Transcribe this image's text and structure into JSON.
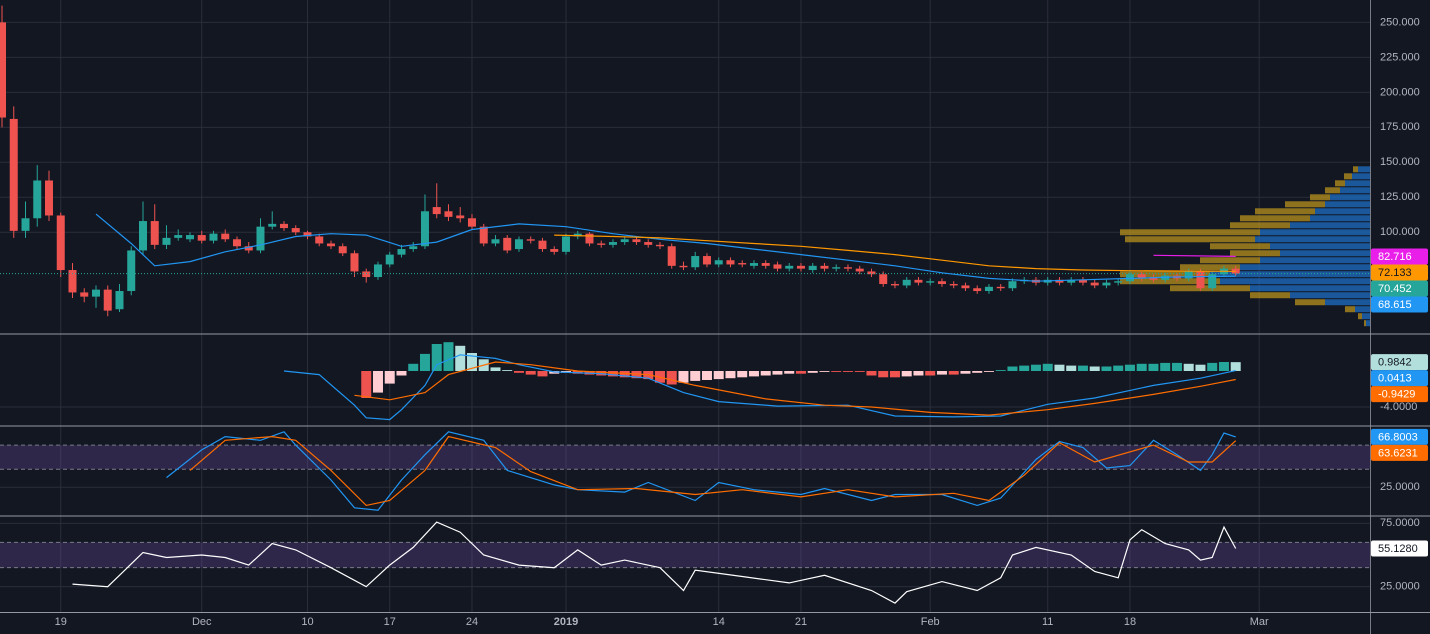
{
  "chart_data": [
    {
      "type": "candlestick",
      "open": [
        250,
        181,
        101,
        110,
        137,
        112,
        73,
        57,
        54,
        59,
        45,
        58,
        87,
        108,
        91,
        96,
        95,
        98,
        94,
        99,
        95,
        90,
        87,
        104,
        106,
        103,
        100,
        97,
        92,
        90,
        85,
        72,
        68,
        77,
        84,
        88,
        90,
        118,
        115,
        112,
        110,
        104,
        92,
        96,
        88,
        95,
        94,
        88,
        86,
        97,
        99,
        92,
        91,
        93,
        95,
        93,
        91,
        90,
        76,
        75,
        83,
        77,
        80,
        78,
        76,
        78,
        77,
        74,
        76,
        73,
        76,
        74,
        75,
        74,
        72,
        70,
        63,
        62,
        66,
        64,
        65,
        63,
        62,
        60,
        58,
        61,
        60,
        65,
        66,
        64,
        66,
        64,
        66,
        64,
        62,
        64,
        65,
        70,
        68,
        66,
        69,
        67,
        72,
        60,
        70,
        74
      ],
      "high": [
        262,
        190,
        122,
        148,
        144,
        114,
        78,
        60,
        62,
        62,
        63,
        90,
        122,
        120,
        105,
        102,
        100,
        101,
        101,
        102,
        97,
        93,
        110,
        115,
        108,
        105,
        101,
        99,
        94,
        92,
        87,
        74,
        79,
        86,
        91,
        93,
        127,
        135,
        120,
        118,
        113,
        106,
        98,
        98,
        97,
        97,
        96,
        90,
        99,
        101,
        100,
        94,
        95,
        97,
        97,
        95,
        93,
        92,
        79,
        86,
        85,
        82,
        82,
        80,
        80,
        80,
        79,
        78,
        78,
        78,
        78,
        77,
        77,
        76,
        74,
        72,
        65,
        68,
        68,
        67,
        67,
        65,
        64,
        62,
        63,
        63,
        67,
        68,
        68,
        68,
        68,
        68,
        68,
        66,
        66,
        67,
        72,
        72,
        70,
        71,
        71,
        74,
        74,
        72,
        76,
        76
      ],
      "low": [
        175,
        96,
        96,
        104,
        108,
        68,
        53,
        50,
        46,
        40,
        43,
        55,
        84,
        88,
        88,
        94,
        93,
        92,
        92,
        93,
        88,
        85,
        85,
        102,
        101,
        98,
        95,
        90,
        88,
        83,
        68,
        64,
        66,
        75,
        82,
        86,
        88,
        110,
        108,
        107,
        102,
        90,
        90,
        85,
        86,
        92,
        86,
        84,
        84,
        95,
        90,
        89,
        89,
        91,
        91,
        89,
        88,
        74,
        73,
        73,
        75,
        75,
        75,
        75,
        74,
        74,
        72,
        72,
        72,
        71,
        72,
        72,
        72,
        70,
        68,
        61,
        60,
        60,
        62,
        62,
        61,
        60,
        58,
        56,
        56,
        58,
        58,
        63,
        62,
        62,
        62,
        62,
        62,
        60,
        60,
        62,
        63,
        65,
        64,
        64,
        65,
        65,
        58,
        58,
        68,
        69
      ],
      "close": [
        182,
        101,
        110,
        137,
        112,
        73,
        57,
        54,
        59,
        44,
        58,
        87,
        108,
        91,
        96,
        98,
        98,
        94,
        99,
        95,
        90,
        87,
        104,
        106,
        103,
        100,
        97,
        92,
        90,
        85,
        72,
        68,
        77,
        84,
        88,
        90,
        115,
        113,
        111,
        110,
        104,
        92,
        95,
        87,
        95,
        94,
        88,
        86,
        97,
        99,
        92,
        91,
        93,
        95,
        93,
        91,
        90,
        76,
        75,
        83,
        77,
        80,
        77,
        77,
        78,
        76,
        74,
        76,
        74,
        76,
        74,
        75,
        74,
        72,
        70,
        63,
        62,
        66,
        64,
        65,
        63,
        62,
        60,
        58,
        61,
        60,
        65,
        66,
        64,
        66,
        64,
        66,
        64,
        62,
        64,
        65,
        70,
        67,
        66,
        69,
        67,
        72,
        60,
        70,
        74,
        70.452
      ],
      "up_color": "#26a69a",
      "down_color": "#ef5350",
      "price_line_color": "#26a69a",
      "series": [
        {
          "color": "#2196f3",
          "x": [
            8,
            11,
            13,
            16,
            19,
            22,
            25,
            28,
            31,
            34,
            37,
            40,
            44,
            48,
            52,
            56,
            60,
            64,
            68,
            72,
            76,
            80,
            84,
            88,
            92,
            96,
            100,
            105
          ],
          "values": [
            113,
            92,
            76,
            79,
            86,
            91,
            97,
            99,
            98,
            90,
            93,
            102,
            106,
            104,
            99,
            95,
            92,
            88,
            84,
            80,
            76,
            71,
            67,
            65,
            66,
            67,
            68,
            68.615
          ]
        },
        {
          "color": "#ff9800",
          "x": [
            47,
            52,
            56,
            60,
            64,
            68,
            72,
            76,
            80,
            84,
            88,
            92,
            96,
            100,
            105
          ],
          "values": [
            98,
            97,
            96,
            94,
            92,
            90,
            87,
            84,
            80,
            76,
            74,
            73,
            72.5,
            72.3,
            72.133
          ]
        },
        {
          "color": "#e91ee9",
          "x": [
            98,
            105
          ],
          "values": [
            83.5,
            82.716
          ]
        }
      ],
      "volume_profile": {
        "prices": [
          145,
          140,
          135,
          130,
          125,
          120,
          115,
          110,
          105,
          100,
          95,
          90,
          85,
          80,
          75,
          70,
          65,
          60,
          55,
          50,
          45,
          40,
          35
        ],
        "up": [
          12,
          18,
          25,
          30,
          40,
          45,
          55,
          60,
          80,
          110,
          115,
          100,
          90,
          110,
          130,
          160,
          150,
          120,
          80,
          45,
          15,
          8,
          4
        ],
        "down": [
          5,
          8,
          10,
          15,
          20,
          40,
          60,
          70,
          60,
          140,
          130,
          60,
          50,
          60,
          60,
          90,
          100,
          80,
          40,
          30,
          10,
          4,
          2
        ],
        "row_height": 5,
        "up_color": "#1e6fc4",
        "down_color": "#b8921c"
      },
      "ylim": [
        28,
        266
      ],
      "yticks": [
        {
          "value": 250,
          "label": "250.000"
        },
        {
          "value": 225,
          "label": "225.000"
        },
        {
          "value": 200,
          "label": "200.000"
        },
        {
          "value": 175,
          "label": "175.000"
        },
        {
          "value": 150,
          "label": "150.000"
        },
        {
          "value": 125,
          "label": "125.000"
        },
        {
          "value": 100,
          "label": "100.000"
        }
      ],
      "xlim": [
        -0.17,
        116.43
      ],
      "xticks": [
        {
          "value": 5,
          "label": "19"
        },
        {
          "value": 17,
          "label": "Dec"
        },
        {
          "value": 26,
          "label": "10"
        },
        {
          "value": 33,
          "label": "17"
        },
        {
          "value": 40,
          "label": "24"
        },
        {
          "value": 48,
          "label": "2019"
        },
        {
          "value": 61,
          "label": "14"
        },
        {
          "value": 68,
          "label": "21"
        },
        {
          "value": 79,
          "label": "Feb"
        },
        {
          "value": 89,
          "label": "11"
        },
        {
          "value": 96,
          "label": "18"
        },
        {
          "value": 107,
          "label": "Mar"
        }
      ],
      "grid": true
    },
    {
      "type": "macd",
      "histogram": {
        "values": [
          null,
          null,
          null,
          null,
          null,
          null,
          null,
          null,
          null,
          null,
          null,
          null,
          null,
          null,
          null,
          null,
          null,
          null,
          null,
          null,
          null,
          null,
          null,
          null,
          null,
          null,
          null,
          null,
          null,
          null,
          null,
          -3,
          -2.4,
          -1.4,
          -0.5,
          0.8,
          1.9,
          3,
          3.2,
          2.8,
          2,
          1.3,
          0.4,
          0.1,
          -0.2,
          -0.4,
          -0.6,
          -0.3,
          -0.2,
          -0.3,
          -0.4,
          -0.5,
          -0.6,
          -0.7,
          -0.8,
          -0.9,
          -1.3,
          -1.5,
          -1.3,
          -1.1,
          -1,
          -0.9,
          -0.8,
          -0.7,
          -0.6,
          -0.5,
          -0.4,
          -0.3,
          -0.3,
          -0.2,
          -0.1,
          -0.1,
          -0.1,
          -0.1,
          -0.5,
          -0.7,
          -0.7,
          -0.6,
          -0.5,
          -0.5,
          -0.4,
          -0.4,
          -0.3,
          -0.2,
          -0.1,
          0.1,
          0.5,
          0.6,
          0.7,
          0.8,
          0.7,
          0.6,
          0.6,
          0.5,
          0.5,
          0.6,
          0.7,
          0.8,
          0.8,
          0.9,
          0.9,
          0.8,
          0.7,
          0.9,
          1,
          0.9842
        ],
        "colors": {
          "positive_rising": "#26a69a",
          "positive_falling": "#b2dfdb",
          "negative_falling": "#ef5350",
          "negative_rising": "#ffcdd2"
        },
        "label_color": "#b2dfdb"
      },
      "series": [
        {
          "color": "#2196f3",
          "x": [
            24,
            27,
            30,
            31,
            33,
            34,
            36,
            37,
            39,
            42,
            44,
            47,
            51,
            55,
            58,
            61,
            66,
            72,
            76,
            81,
            85,
            89,
            93,
            98,
            102,
            105
          ],
          "values": [
            0,
            -0.4,
            -3.8,
            -5.2,
            -5.4,
            -4.3,
            -1.6,
            0.7,
            1.8,
            1.4,
            0.7,
            -0.1,
            -0.3,
            -0.8,
            -2.4,
            -3.4,
            -3.9,
            -3.8,
            -5,
            -5.1,
            -5,
            -3.7,
            -3,
            -1.6,
            -0.8,
            0.0413
          ]
        },
        {
          "color": "#ff6d00",
          "x": [
            30,
            33,
            36,
            38,
            42,
            45,
            49,
            55,
            59,
            65,
            70,
            74,
            79,
            84,
            89,
            93,
            98,
            102,
            105
          ],
          "values": [
            -2.7,
            -3.2,
            -2.4,
            -0.4,
            1,
            0.7,
            0,
            -0.4,
            -1.6,
            -3.1,
            -3.8,
            -4,
            -4.6,
            -4.9,
            -4.3,
            -3.6,
            -2.6,
            -1.7,
            -0.9429
          ]
        }
      ],
      "ylim": [
        -6,
        4
      ],
      "yticks": [
        {
          "value": -4,
          "label": "-4.0000"
        }
      ]
    },
    {
      "type": "line",
      "series": [
        {
          "color": "#2196f3",
          "x": [
            14,
            17,
            19,
            22,
            24,
            25,
            28,
            30,
            32,
            34,
            36,
            38,
            41,
            43,
            47,
            49,
            53,
            55,
            59,
            61,
            64,
            68,
            70,
            74,
            76,
            80,
            83,
            85,
            88,
            90,
            92,
            94,
            96,
            98,
            100,
            102,
            103,
            104,
            105
          ],
          "values": [
            33,
            56,
            67,
            64,
            71,
            60,
            31,
            8,
            6,
            31,
            52,
            71,
            64,
            39,
            27,
            23,
            21,
            29,
            14,
            29,
            23,
            19,
            24,
            14,
            19,
            19,
            10,
            16,
            48,
            63,
            58,
            41,
            43,
            64,
            52,
            39,
            52,
            70,
            66.8003
          ]
        },
        {
          "color": "#ff6d00",
          "x": [
            16,
            19,
            23,
            25,
            28,
            31,
            33,
            36,
            38,
            42,
            45,
            49,
            54,
            59,
            63,
            68,
            72,
            76,
            81,
            84,
            87,
            90,
            93,
            98,
            101,
            103,
            105
          ],
          "values": [
            39,
            64,
            67,
            64,
            39,
            10,
            14,
            39,
            67,
            58,
            38,
            23,
            24,
            19,
            23,
            17,
            23,
            17,
            20,
            14,
            35,
            62,
            46,
            60,
            46,
            46,
            63.6231
          ]
        }
      ],
      "bands": [
        40,
        60
      ],
      "band_color": "#7e57c2",
      "ylim": [
        2,
        75
      ],
      "yticks": [
        {
          "value": 25,
          "label": "25.0000"
        }
      ]
    },
    {
      "type": "line",
      "series": [
        {
          "color": "#ffffff",
          "last_label": "55.1280",
          "x": [
            6,
            9,
            10,
            12,
            14,
            17,
            19,
            21,
            23,
            25,
            28,
            31,
            33,
            35,
            37,
            39,
            41,
            44,
            47,
            49,
            51,
            53,
            56,
            58,
            59,
            63,
            67,
            70,
            74,
            76,
            77,
            80,
            83,
            85,
            86,
            88,
            91,
            93,
            95,
            96,
            97,
            99,
            101,
            102,
            103,
            104,
            105
          ],
          "values": [
            27,
            25,
            34,
            52,
            48,
            50,
            48,
            42,
            59,
            54,
            40,
            25,
            42,
            56,
            76,
            68,
            50,
            42,
            40,
            54,
            42,
            46,
            40,
            22,
            38,
            33,
            28,
            34,
            22,
            12,
            21,
            29,
            22,
            32,
            50,
            56,
            50,
            37,
            32,
            62,
            70,
            59,
            54,
            46,
            48,
            72,
            55.128
          ]
        }
      ],
      "bands": [
        40,
        60
      ],
      "band_color": "#7e57c2",
      "ylim": [
        5,
        80
      ],
      "yticks": [
        {
          "value": 75,
          "label": "75.0000"
        },
        {
          "value": 25,
          "label": "25.0000"
        }
      ]
    }
  ]
}
